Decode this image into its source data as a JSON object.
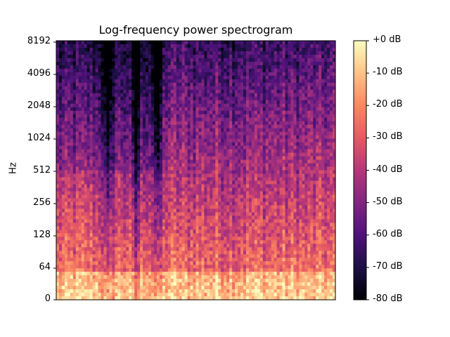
{
  "chart_data": {
    "type": "heatmap",
    "title": "Log-frequency power spectrogram",
    "xlabel": "",
    "ylabel": "Hz",
    "y_scale": "log",
    "y_ticks": [
      "0",
      "64",
      "128",
      "256",
      "512",
      "1024",
      "2048",
      "4096",
      "8192"
    ],
    "colorbar": {
      "ticks": [
        "+0 dB",
        "-10 dB",
        "-20 dB",
        "-30 dB",
        "-40 dB",
        "-50 dB",
        "-60 dB",
        "-70 dB",
        "-80 dB"
      ],
      "range": [
        -80,
        0
      ],
      "colormap": "magma"
    },
    "quiet_x_regions": [
      0.18,
      0.28,
      0.36
    ],
    "colors": {
      "magma": [
        "#000004",
        "#1c1044",
        "#4f127b",
        "#812581",
        "#b5367a",
        "#e55964",
        "#fb8761",
        "#fec287",
        "#fcfdbf"
      ]
    }
  }
}
